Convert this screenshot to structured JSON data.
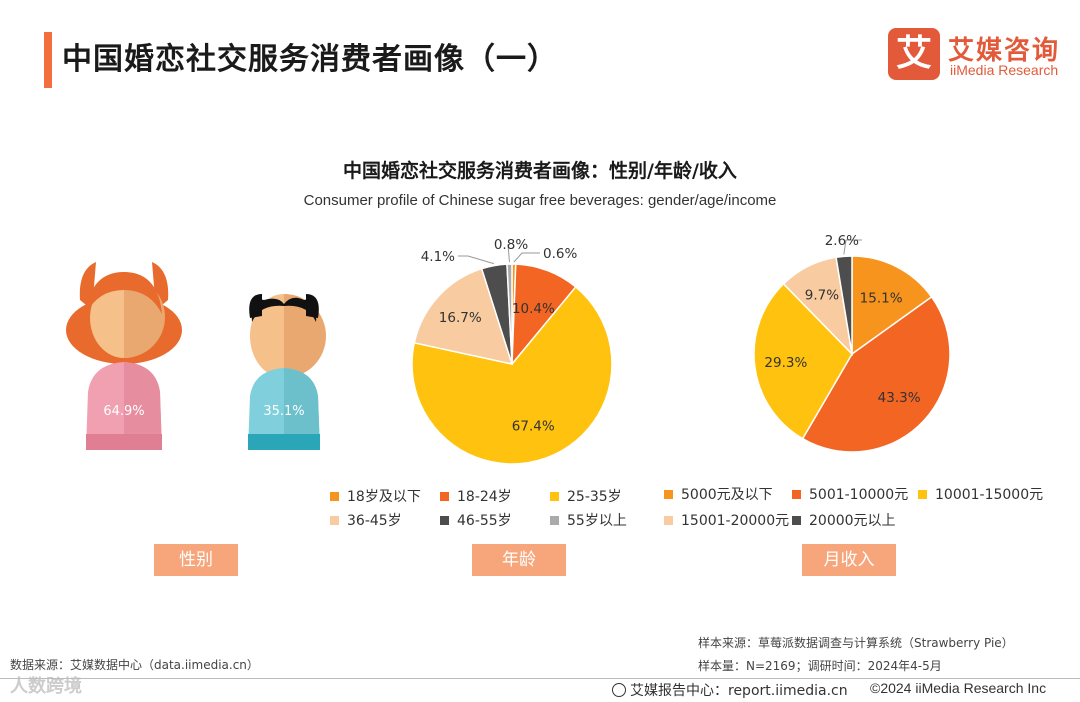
{
  "header": {
    "title": "中国婚恋社交服务消费者画像（一）",
    "logo": {
      "mark": "艾",
      "name_cn": "艾媒咨询",
      "name_en": "iiMedia Research",
      "color": "#e25a3a"
    }
  },
  "chart": {
    "title": "中国婚恋社交服务消费者画像：性别/年龄/收入",
    "subtitle": "Consumer profile of Chinese sugar free beverages: gender/age/income"
  },
  "chart_data": [
    {
      "type": "pictograph",
      "section": "性别",
      "categories": [
        "女",
        "男"
      ],
      "values": [
        64.9,
        35.1
      ],
      "labels": [
        "64.9%",
        "35.1%"
      ],
      "colors": [
        "#f0a0b0",
        "#7fd0dc"
      ]
    },
    {
      "type": "pie",
      "section": "年龄",
      "categories": [
        "18岁及以下",
        "18-24岁",
        "25-35岁",
        "36-45岁",
        "46-55岁",
        "55岁以上"
      ],
      "values": [
        0.6,
        10.4,
        67.4,
        16.7,
        4.1,
        0.8
      ],
      "labels": [
        "0.6%",
        "10.4%",
        "67.4%",
        "16.7%",
        "4.1%",
        "0.8%"
      ],
      "colors": [
        "#f7941d",
        "#f26522",
        "#ffc20e",
        "#f9cba0",
        "#4d4d4d",
        "#aaaaaa"
      ]
    },
    {
      "type": "pie",
      "section": "月收入",
      "categories": [
        "5000元及以下",
        "5001-10000元",
        "10001-15000元",
        "15001-20000元",
        "20000元以上"
      ],
      "values": [
        15.1,
        43.3,
        29.3,
        9.7,
        2.6
      ],
      "labels": [
        "15.1%",
        "43.3%",
        "29.3%",
        "9.7%",
        "2.6%"
      ],
      "colors": [
        "#f7941d",
        "#f26522",
        "#ffc20e",
        "#f9cba0",
        "#4d4d4d"
      ]
    }
  ],
  "sections": [
    "性别",
    "年龄",
    "月收入"
  ],
  "source": {
    "sample_source": "样本来源：草莓派数据调查与计算系统（Strawberry Pie）",
    "sample_info": "样本量：N=2169；调研时间：2024年4-5月",
    "data_source": "数据来源：艾媒数据中心（data.iimedia.cn）"
  },
  "footer": {
    "report": "艾媒报告中心：report.iimedia.cn",
    "copyright": "©2024  iiMedia Research Inc",
    "watermark": "人数跨境"
  },
  "colors": {
    "accent": "#f36f3f",
    "label_bg": "#f7a57a"
  }
}
